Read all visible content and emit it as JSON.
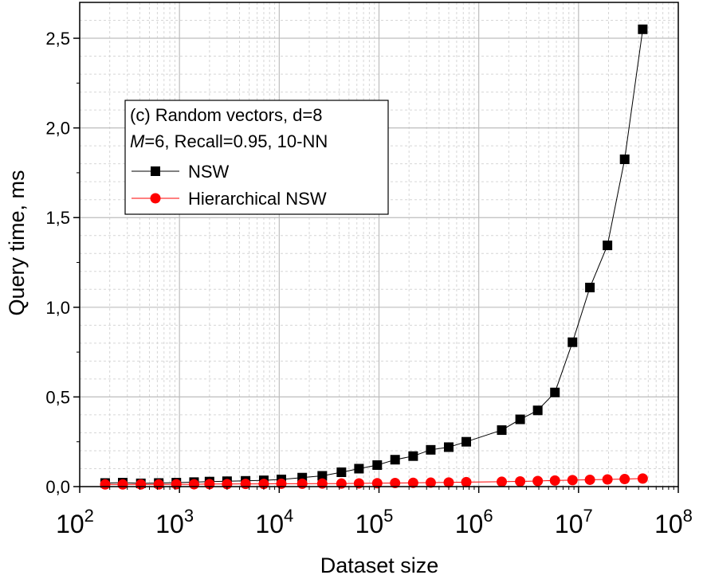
{
  "chart_data": {
    "type": "line",
    "xscale": "log",
    "xlabel": "Dataset size",
    "ylabel": "Query time, ms",
    "xlim": [
      100,
      100000000
    ],
    "ylim": [
      0,
      2.7
    ],
    "xticks": [
      {
        "value": 100,
        "base": "10",
        "exp": "2"
      },
      {
        "value": 1000,
        "base": "10",
        "exp": "3"
      },
      {
        "value": 10000,
        "base": "10",
        "exp": "4"
      },
      {
        "value": 100000,
        "base": "10",
        "exp": "5"
      },
      {
        "value": 1000000,
        "base": "10",
        "exp": "6"
      },
      {
        "value": 10000000,
        "base": "10",
        "exp": "7"
      },
      {
        "value": 100000000,
        "base": "10",
        "exp": "8"
      }
    ],
    "yticks": [
      {
        "value": 0.0,
        "label": "0,0"
      },
      {
        "value": 0.5,
        "label": "0,5"
      },
      {
        "value": 1.0,
        "label": "1,0"
      },
      {
        "value": 1.5,
        "label": "1,5"
      },
      {
        "value": 2.0,
        "label": "2,0"
      },
      {
        "value": 2.5,
        "label": "2,5"
      }
    ],
    "grid": true,
    "legend_position": "upper-left",
    "legend_title_lines": [
      {
        "parts": [
          {
            "text": "(c) Random vectors, d=8",
            "italic": false
          }
        ]
      },
      {
        "parts": [
          {
            "text": "M",
            "italic": true
          },
          {
            "text": "=6, Recall=0.95, 10-NN",
            "italic": false
          }
        ]
      }
    ],
    "series": [
      {
        "name": "NSW",
        "color": "#000000",
        "marker": "square",
        "x": [
          180,
          270,
          410,
          620,
          930,
          1400,
          2000,
          3000,
          4600,
          7000,
          10500,
          17000,
          27000,
          42000,
          63000,
          96000,
          145000,
          220000,
          330000,
          500000,
          750000,
          1700000,
          2600000,
          3900000,
          5800000,
          8700000,
          13000000,
          19500000,
          29000000,
          44000000
        ],
        "y": [
          0.02,
          0.022,
          0.018,
          0.02,
          0.022,
          0.025,
          0.028,
          0.03,
          0.032,
          0.035,
          0.04,
          0.05,
          0.06,
          0.08,
          0.1,
          0.12,
          0.15,
          0.17,
          0.205,
          0.22,
          0.25,
          0.315,
          0.375,
          0.425,
          0.525,
          0.805,
          1.11,
          1.345,
          1.825,
          2.55
        ]
      },
      {
        "name": "Hierarchical NSW",
        "color": "#ff0000",
        "marker": "circle",
        "x": [
          180,
          270,
          410,
          620,
          930,
          1400,
          2000,
          3000,
          4600,
          7000,
          10500,
          17000,
          27000,
          42000,
          63000,
          96000,
          145000,
          220000,
          330000,
          500000,
          750000,
          1700000,
          2600000,
          3900000,
          5800000,
          8700000,
          13000000,
          19500000,
          29000000,
          44000000
        ],
        "y": [
          0.012,
          0.012,
          0.012,
          0.012,
          0.013,
          0.013,
          0.014,
          0.014,
          0.015,
          0.015,
          0.016,
          0.016,
          0.017,
          0.017,
          0.018,
          0.019,
          0.02,
          0.021,
          0.022,
          0.023,
          0.025,
          0.027,
          0.029,
          0.031,
          0.034,
          0.036,
          0.038,
          0.04,
          0.042,
          0.045
        ]
      }
    ]
  }
}
